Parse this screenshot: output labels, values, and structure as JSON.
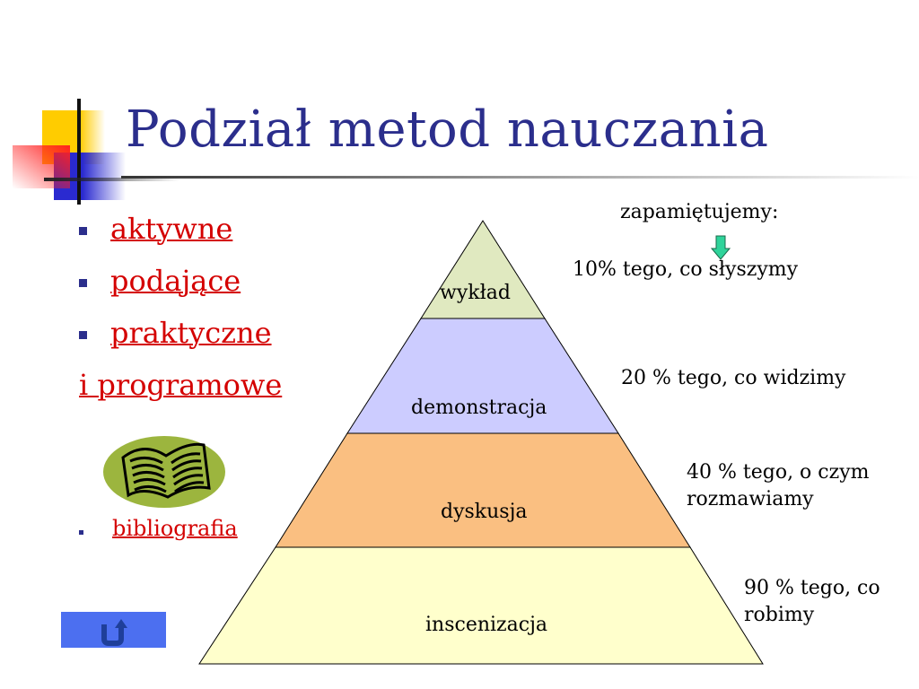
{
  "slide": {
    "title": "Podział metod nauczania",
    "bullets": [
      {
        "label": "aktywne"
      },
      {
        "label": "podające"
      },
      {
        "label": "praktyczne"
      }
    ],
    "extra_link": "i programowe",
    "bibliography_link": "bibliografia",
    "back_button_icon": "u-turn-arrow-icon"
  },
  "pyramid": {
    "levels": [
      {
        "label": "wykład",
        "color": "#e0e9c0"
      },
      {
        "label": "demonstracja",
        "color": "#ccccff"
      },
      {
        "label": "dyskusja",
        "color": "#fabf81"
      },
      {
        "label": "inscenizacja",
        "color": "#ffffcc"
      }
    ],
    "header": "zapamiętujemy:",
    "retention": [
      "10% tego, co słyszymy",
      "20 % tego, co widzimy",
      "40 % tego, o czym rozmawiamy",
      "90 % tego, co robimy"
    ]
  },
  "colors": {
    "title": "#2b2e8c",
    "link": "#d40000",
    "arrow": "#2fd39a",
    "button": "#4c6ff0"
  }
}
